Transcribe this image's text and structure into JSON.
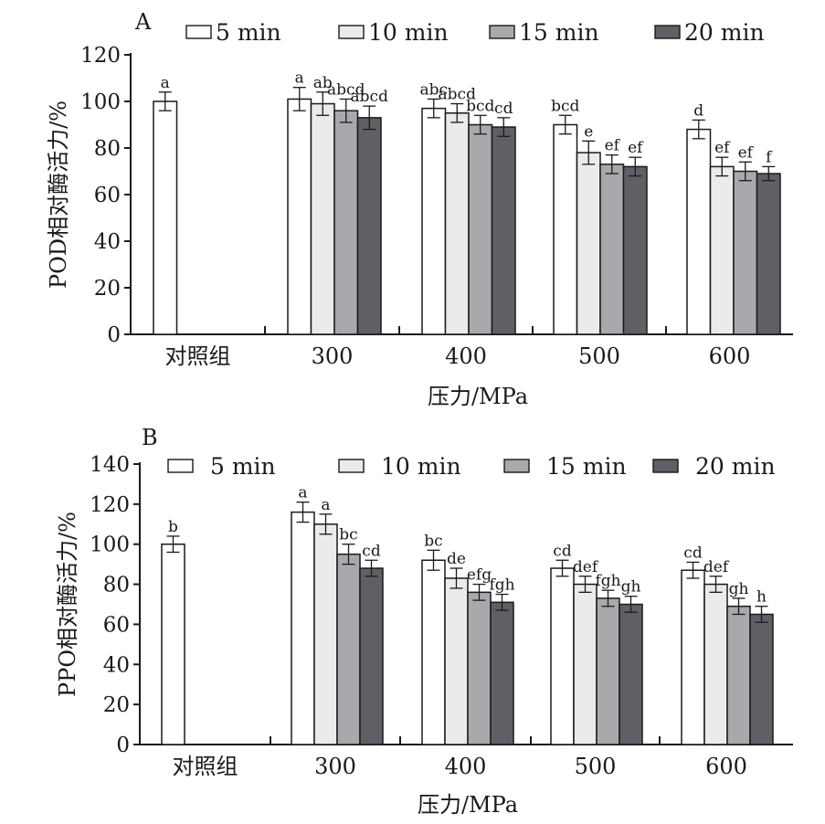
{
  "chart_data": [
    {
      "type": "bar",
      "panel_label": "A",
      "xlabel": "压力/MPa",
      "ylabel": "POD相对酶活力/%",
      "ylim": [
        0,
        120
      ],
      "yticks": [
        0,
        20,
        40,
        60,
        80,
        100,
        120
      ],
      "categories": [
        "对照组",
        "300",
        "400",
        "500",
        "600"
      ],
      "legend_position": "top",
      "series": [
        {
          "name": "5 min",
          "color": "#ffffff",
          "values": [
            100,
            101,
            97,
            90,
            88
          ],
          "errors": [
            4,
            5,
            4,
            4,
            4
          ],
          "labels": [
            "a",
            "a",
            "abc",
            "bcd",
            "d"
          ]
        },
        {
          "name": "10 min",
          "color": "#ebebeb",
          "values": [
            null,
            99,
            95,
            78,
            72
          ],
          "errors": [
            null,
            5,
            4,
            5,
            4
          ],
          "labels": [
            "",
            "ab",
            "abcd",
            "e",
            "ef"
          ]
        },
        {
          "name": "15 min",
          "color": "#a9a9ad",
          "values": [
            null,
            96,
            90,
            73,
            70
          ],
          "errors": [
            null,
            5,
            4,
            4,
            4
          ],
          "labels": [
            "",
            "abcd",
            "bcd",
            "ef",
            "ef"
          ]
        },
        {
          "name": "20 min",
          "color": "#5f6066",
          "values": [
            null,
            93,
            89,
            72,
            69
          ],
          "errors": [
            null,
            5,
            4,
            4,
            3
          ],
          "labels": [
            "",
            "abcd",
            "cd",
            "ef",
            "f"
          ]
        }
      ]
    },
    {
      "type": "bar",
      "panel_label": "B",
      "xlabel": "压力/MPa",
      "ylabel": "PPO相对酶活力/%",
      "ylim": [
        0,
        140
      ],
      "yticks": [
        0,
        20,
        40,
        60,
        80,
        100,
        120,
        140
      ],
      "categories": [
        "对照组",
        "300",
        "400",
        "500",
        "600"
      ],
      "legend_position": "top",
      "series": [
        {
          "name": "5 min",
          "color": "#ffffff",
          "values": [
            100,
            116,
            92,
            88,
            87
          ],
          "errors": [
            4,
            5,
            5,
            4,
            4
          ],
          "labels": [
            "b",
            "a",
            "bc",
            "cd",
            "cd"
          ]
        },
        {
          "name": "10 min",
          "color": "#ebebeb",
          "values": [
            null,
            110,
            83,
            80,
            80
          ],
          "errors": [
            null,
            5,
            5,
            4,
            4
          ],
          "labels": [
            "",
            "a",
            "de",
            "def",
            "def"
          ]
        },
        {
          "name": "15 min",
          "color": "#a9a9ad",
          "values": [
            null,
            95,
            76,
            73,
            69
          ],
          "errors": [
            null,
            5,
            4,
            4,
            4
          ],
          "labels": [
            "",
            "bc",
            "efg",
            "fgh",
            "gh"
          ]
        },
        {
          "name": "20 min",
          "color": "#5f6066",
          "values": [
            null,
            88,
            71,
            70,
            65
          ],
          "errors": [
            null,
            4,
            4,
            4,
            4
          ],
          "labels": [
            "",
            "cd",
            "fgh",
            "gh",
            "h"
          ]
        }
      ]
    }
  ]
}
